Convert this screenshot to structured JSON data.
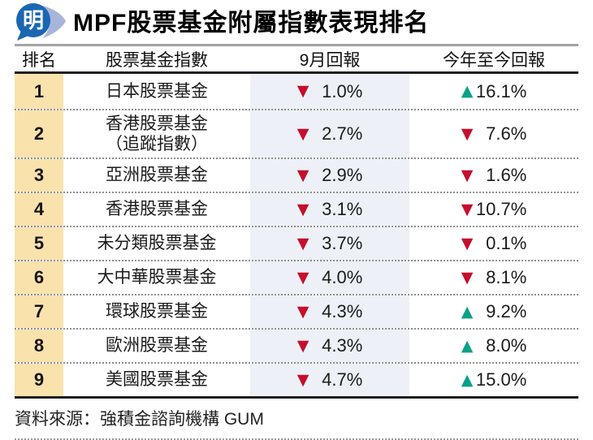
{
  "masthead": {
    "logo_glyph": "明",
    "title": "MPF股票基金附屬指數表現排名"
  },
  "table": {
    "headers": [
      "排名",
      "股票基金指數",
      "9月回報",
      "今年至今回報"
    ],
    "rows": [
      {
        "rank": "1",
        "fund": "日本股票基金",
        "fund2": "",
        "sep_dir": "down",
        "sep": "1.0%",
        "ytd_dir": "up",
        "ytd": "16.1%"
      },
      {
        "rank": "2",
        "fund": "香港股票基金",
        "fund2": "（追蹤指數）",
        "sep_dir": "down",
        "sep": "2.7%",
        "ytd_dir": "down",
        "ytd": "7.6%"
      },
      {
        "rank": "3",
        "fund": "亞洲股票基金",
        "fund2": "",
        "sep_dir": "down",
        "sep": "2.9%",
        "ytd_dir": "down",
        "ytd": "1.6%"
      },
      {
        "rank": "4",
        "fund": "香港股票基金",
        "fund2": "",
        "sep_dir": "down",
        "sep": "3.1%",
        "ytd_dir": "down",
        "ytd": "10.7%"
      },
      {
        "rank": "5",
        "fund": "未分類股票基金",
        "fund2": "",
        "sep_dir": "down",
        "sep": "3.7%",
        "ytd_dir": "down",
        "ytd": "0.1%"
      },
      {
        "rank": "6",
        "fund": "大中華股票基金",
        "fund2": "",
        "sep_dir": "down",
        "sep": "4.0%",
        "ytd_dir": "down",
        "ytd": "8.1%"
      },
      {
        "rank": "7",
        "fund": "環球股票基金",
        "fund2": "",
        "sep_dir": "down",
        "sep": "4.3%",
        "ytd_dir": "up",
        "ytd": "9.2%"
      },
      {
        "rank": "8",
        "fund": "歐洲股票基金",
        "fund2": "",
        "sep_dir": "down",
        "sep": "4.3%",
        "ytd_dir": "up",
        "ytd": "8.0%"
      },
      {
        "rank": "9",
        "fund": "美國股票基金",
        "fund2": "",
        "sep_dir": "down",
        "sep": "4.7%",
        "ytd_dir": "up",
        "ytd": "15.0%"
      }
    ]
  },
  "icons": {
    "up_triangle": "▲",
    "down_triangle": "▼"
  },
  "footer": {
    "source": "資料來源：強積金諮詢機構 GUM"
  },
  "colors": {
    "up": "#0aa189",
    "down": "#c50f2c",
    "rank_column_bg": "#fae2ad",
    "sep_column_bg": "#edf1f7",
    "logo_blue": "#1b67b1",
    "logo_swoosh": "#a7b5db"
  },
  "chart_data": {
    "type": "table",
    "title": "MPF股票基金附屬指數表現排名",
    "columns": [
      "排名",
      "股票基金指數",
      "9月回報",
      "今年至今回報"
    ],
    "rows": [
      [
        "1",
        "日本股票基金",
        "-1.0%",
        "+16.1%"
      ],
      [
        "2",
        "香港股票基金（追蹤指數）",
        "-2.7%",
        "-7.6%"
      ],
      [
        "3",
        "亞洲股票基金",
        "-2.9%",
        "-1.6%"
      ],
      [
        "4",
        "香港股票基金",
        "-3.1%",
        "-10.7%"
      ],
      [
        "5",
        "未分類股票基金",
        "-3.7%",
        "-0.1%"
      ],
      [
        "6",
        "大中華股票基金",
        "-4.0%",
        "-8.1%"
      ],
      [
        "7",
        "環球股票基金",
        "-4.3%",
        "+9.2%"
      ],
      [
        "8",
        "歐洲股票基金",
        "-4.3%",
        "+8.0%"
      ],
      [
        "9",
        "美國股票基金",
        "-4.7%",
        "+15.0%"
      ]
    ],
    "source": "資料來源：強積金諮詢機構 GUM"
  }
}
